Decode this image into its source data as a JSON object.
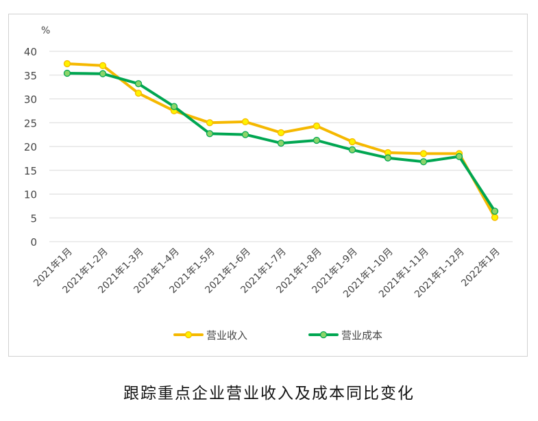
{
  "caption": "跟踪重点企业营业收入及成本同比变化",
  "chart_data": {
    "type": "line",
    "title": "",
    "unit_label": "%",
    "xlabel": "",
    "ylabel": "",
    "ylim": [
      0,
      40
    ],
    "yticks": [
      0,
      5,
      10,
      15,
      20,
      25,
      30,
      35,
      40
    ],
    "grid": true,
    "legend": "bottom",
    "categories": [
      "2021年1月",
      "2021年1-2月",
      "2021年1-3月",
      "2021年1-4月",
      "2021年1-5月",
      "2021年1-6月",
      "2021年1-7月",
      "2021年1-8月",
      "2021年1-9月",
      "2021年1-10月",
      "2021年1-11月",
      "2021年1-12月",
      "2022年1月"
    ],
    "series": [
      {
        "name": "营业收入",
        "color": "#F5B800",
        "marker_color": "#FFF200",
        "values": [
          37.4,
          37.0,
          31.2,
          27.5,
          25.0,
          25.2,
          22.9,
          24.3,
          21.0,
          18.7,
          18.5,
          18.5,
          5.1
        ]
      },
      {
        "name": "营业成本",
        "color": "#00A651",
        "marker_color": "#8CD46A",
        "values": [
          35.4,
          35.3,
          33.2,
          28.4,
          22.7,
          22.5,
          20.7,
          21.3,
          19.3,
          17.6,
          16.8,
          17.9,
          6.4
        ]
      }
    ]
  }
}
